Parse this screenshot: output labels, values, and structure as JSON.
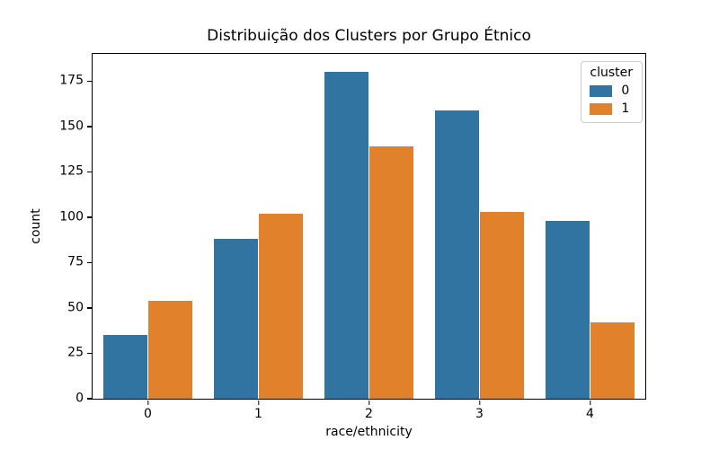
{
  "chart_data": {
    "type": "bar",
    "title": "Distribuição dos Clusters por Grupo Étnico",
    "xlabel": "race/ethnicity",
    "ylabel": "count",
    "categories": [
      "0",
      "1",
      "2",
      "3",
      "4"
    ],
    "series": [
      {
        "name": "0",
        "color": "#3274a1",
        "values": [
          35,
          88,
          180,
          159,
          98
        ]
      },
      {
        "name": "1",
        "color": "#e1812c",
        "values": [
          54,
          102,
          139,
          103,
          42
        ]
      }
    ],
    "legend": {
      "title": "cluster",
      "position": "upper-right"
    },
    "ylim": [
      0,
      190
    ],
    "yticks": [
      0,
      25,
      50,
      75,
      100,
      125,
      150,
      175
    ],
    "group_width_fraction": 0.8,
    "grid": false,
    "colors": {
      "axes": "#000000",
      "background": "#ffffff",
      "legend_border": "#cccccc",
      "cluster_0": "#3274a1",
      "cluster_1": "#e1812c"
    }
  }
}
